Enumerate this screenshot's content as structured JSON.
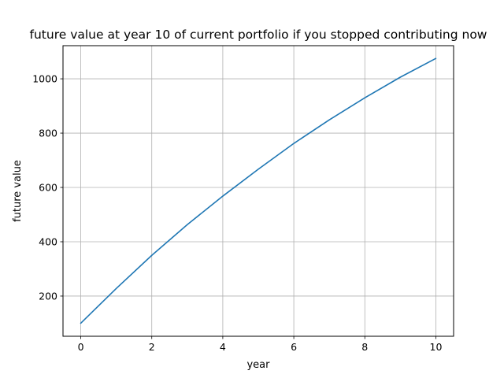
{
  "chart_data": {
    "type": "line",
    "title": "future value at year 10 of current portfolio if you stopped contributing now",
    "xlabel": "year",
    "ylabel": "future value",
    "x": [
      0,
      1,
      2,
      3,
      4,
      5,
      6,
      7,
      8,
      9,
      10
    ],
    "series": [
      {
        "values": [
          100,
          228,
          350,
          463,
          568,
          667,
          762,
          849,
          930,
          1006,
          1075
        ],
        "color": "#1f77b4"
      }
    ],
    "xlim": [
      -0.5,
      10.5
    ],
    "ylim": [
      52,
      1122
    ],
    "xticks": [
      0,
      2,
      4,
      6,
      8,
      10
    ],
    "yticks": [
      200,
      400,
      600,
      800,
      1000
    ],
    "grid": true,
    "legend": false
  }
}
